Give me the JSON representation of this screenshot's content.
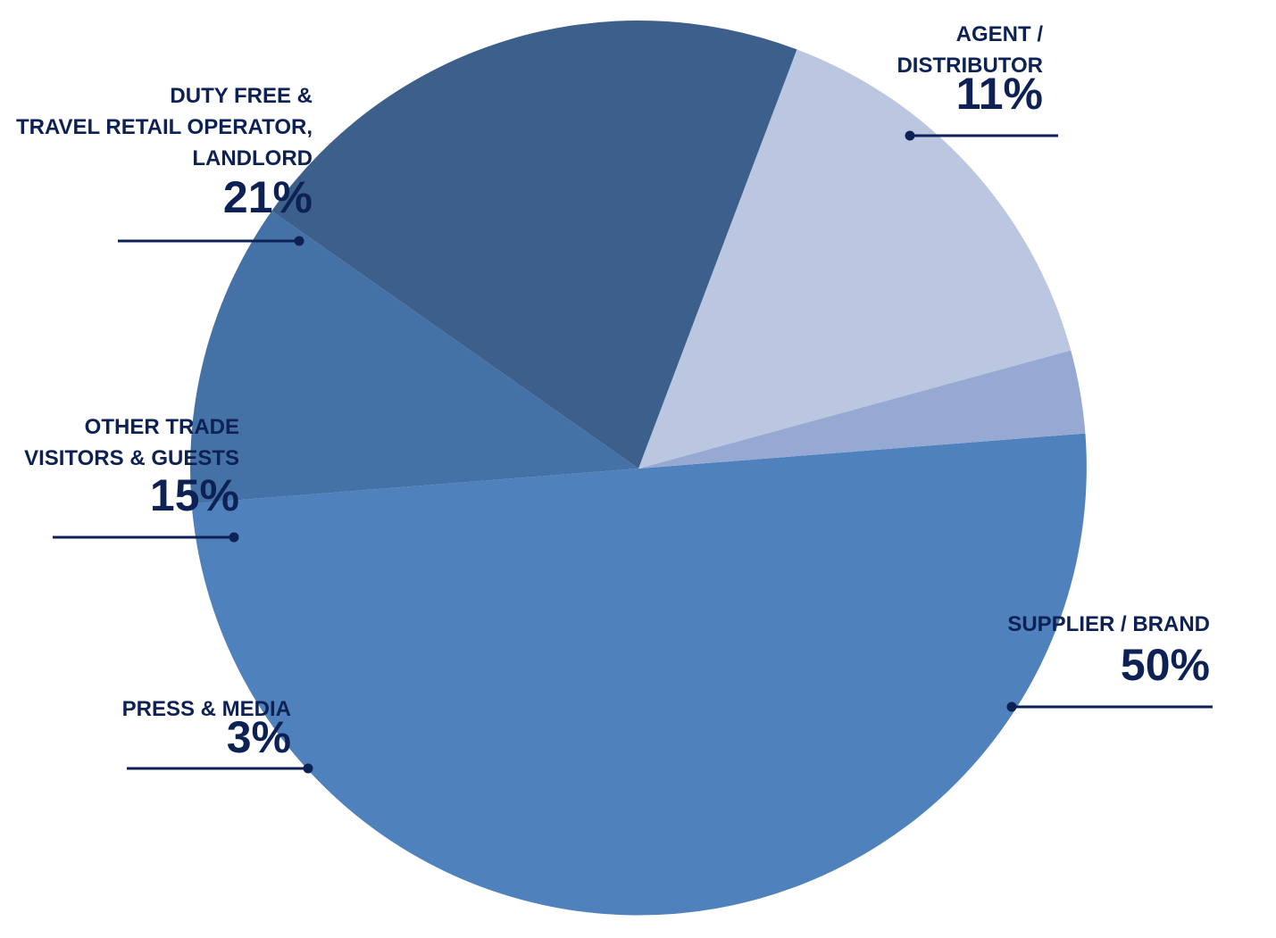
{
  "chart_data": {
    "type": "pie",
    "title": "",
    "legend": "none",
    "label_color": "#0d2155",
    "slices": [
      {
        "label_lines": [
          "SUPPLIER / BRAND"
        ],
        "value": 50,
        "value_label": "50%",
        "color": "#4f81bd"
      },
      {
        "label_lines": [
          "PRESS & MEDIA"
        ],
        "value": 3,
        "value_label": "3%",
        "color": "#95a9d2"
      },
      {
        "label_lines": [
          "OTHER TRADE",
          "VISITORS & GUESTS"
        ],
        "value": 15,
        "value_label": "15%",
        "color": "#bbc7e1"
      },
      {
        "label_lines": [
          "DUTY FREE &",
          "TRAVEL RETAIL OPERATOR,",
          "LANDLORD"
        ],
        "value": 21,
        "value_label": "21%",
        "color": "#3c5f8c"
      },
      {
        "label_lines": [
          "AGENT /",
          "DISTRIBUTOR"
        ],
        "value": 11,
        "value_label": "11%",
        "color": "#4572a6"
      }
    ]
  }
}
